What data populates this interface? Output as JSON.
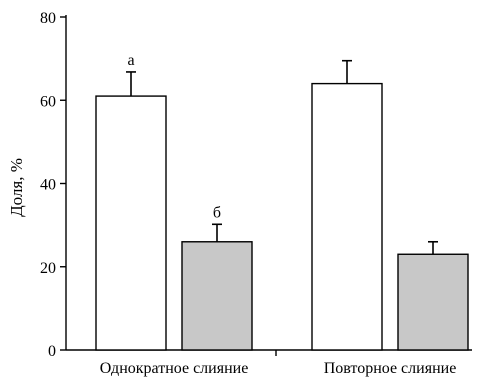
{
  "chart_data": {
    "type": "bar",
    "categories": [
      "Однократное слияние",
      "Повторное слияние"
    ],
    "series": [
      {
        "values": [
          61,
          64
        ],
        "errors": [
          5.8,
          5.5
        ],
        "color": "#ffffff",
        "annotations": [
          "а",
          ""
        ]
      },
      {
        "values": [
          26,
          23
        ],
        "errors": [
          4.2,
          3.0
        ],
        "color": "#c8c8c8",
        "annotations": [
          "б",
          ""
        ]
      }
    ],
    "ylabel": "Доля, %",
    "xlabel": "",
    "ylim": [
      0,
      80
    ],
    "yticks": [
      0,
      20,
      40,
      60,
      80
    ],
    "grid": false,
    "legend": "none"
  }
}
